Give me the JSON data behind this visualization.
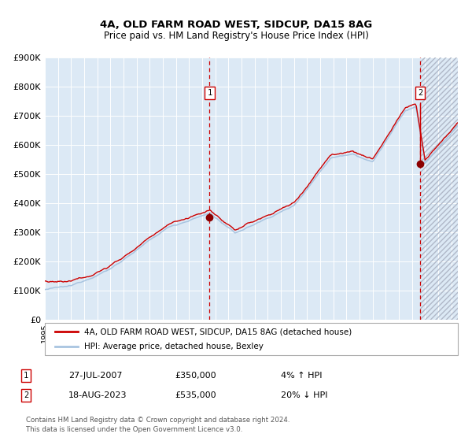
{
  "title": "4A, OLD FARM ROAD WEST, SIDCUP, DA15 8AG",
  "subtitle": "Price paid vs. HM Land Registry's House Price Index (HPI)",
  "legend_line1": "4A, OLD FARM ROAD WEST, SIDCUP, DA15 8AG (detached house)",
  "legend_line2": "HPI: Average price, detached house, Bexley",
  "annotation1_date": "27-JUL-2007",
  "annotation1_price": "£350,000",
  "annotation1_hpi": "4% ↑ HPI",
  "annotation2_date": "18-AUG-2023",
  "annotation2_price": "£535,000",
  "annotation2_hpi": "20% ↓ HPI",
  "footnote1": "Contains HM Land Registry data © Crown copyright and database right 2024.",
  "footnote2": "This data is licensed under the Open Government Licence v3.0.",
  "hpi_line_color": "#a8c4e0",
  "price_line_color": "#cc0000",
  "dot_color": "#8b0000",
  "dashed_line_color": "#cc0000",
  "bg_color": "#dce9f5",
  "hatch_color": "#b0b8c8",
  "ylim": [
    0,
    900000
  ],
  "yticks": [
    0,
    100000,
    200000,
    300000,
    400000,
    500000,
    600000,
    700000,
    800000,
    900000
  ],
  "sale1_x": 2007.57,
  "sale1_y": 350000,
  "sale1_peak_y": 370000,
  "sale2_x": 2023.63,
  "sale2_y": 535000,
  "sale2_peak_y": 740000,
  "xmin": 1995.0,
  "xmax": 2026.5
}
